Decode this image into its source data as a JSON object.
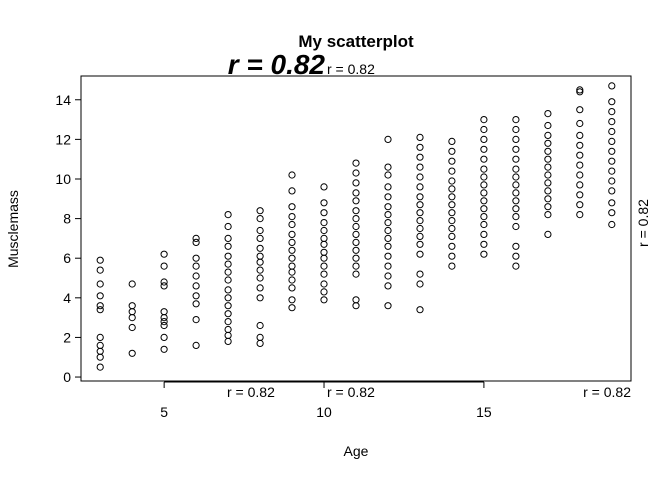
{
  "chart_data": {
    "type": "scatter",
    "title": "My scatterplot",
    "xlabel": "Age",
    "ylabel": "Musclemass",
    "xlim": [
      2.4,
      19.6
    ],
    "ylim": [
      -0.2,
      15.2
    ],
    "x_ticks": [
      5,
      10,
      15
    ],
    "y_ticks": [
      0,
      2,
      4,
      6,
      8,
      10,
      12,
      14
    ],
    "grid": false,
    "legend": "none",
    "marker": "open-circle",
    "point_color": "#000000",
    "annotations": [
      {
        "text": "r = 0.82",
        "style": "large-bold-italic",
        "color": "#ff0000",
        "placement": "top-margin"
      },
      {
        "text": "r = 0.82",
        "color": "#000000",
        "placement": "top-margin"
      },
      {
        "text": "r = 0.82",
        "color": "#000000",
        "placement": "right-margin"
      },
      {
        "text": "r = 0.82",
        "color": "#000000",
        "placement": "bottom-margin-left"
      },
      {
        "text": "r = 0.82",
        "color": "#000000",
        "placement": "bottom-margin-center"
      },
      {
        "text": "r = 0.82",
        "color": "#000000",
        "placement": "bottom-margin-right"
      }
    ],
    "series": [
      {
        "points": [
          [
            3,
            0.5
          ],
          [
            3,
            1.0
          ],
          [
            3,
            1.3
          ],
          [
            3,
            1.6
          ],
          [
            3,
            2.0
          ],
          [
            3,
            3.4
          ],
          [
            3,
            3.6
          ],
          [
            3,
            4.1
          ],
          [
            3,
            4.7
          ],
          [
            3,
            5.4
          ],
          [
            3,
            5.9
          ],
          [
            4,
            1.2
          ],
          [
            4,
            2.5
          ],
          [
            4,
            3.0
          ],
          [
            4,
            3.3
          ],
          [
            4,
            3.6
          ],
          [
            4,
            4.7
          ],
          [
            5,
            1.4
          ],
          [
            5,
            2.0
          ],
          [
            5,
            2.6
          ],
          [
            5,
            2.8
          ],
          [
            5,
            3.0
          ],
          [
            5,
            3.3
          ],
          [
            5,
            4.6
          ],
          [
            5,
            4.8
          ],
          [
            5,
            5.6
          ],
          [
            5,
            6.2
          ],
          [
            6,
            1.6
          ],
          [
            6,
            2.9
          ],
          [
            6,
            3.7
          ],
          [
            6,
            4.1
          ],
          [
            6,
            4.6
          ],
          [
            6,
            5.1
          ],
          [
            6,
            5.6
          ],
          [
            6,
            6.0
          ],
          [
            6,
            6.8
          ],
          [
            6,
            7.0
          ],
          [
            7,
            1.8
          ],
          [
            7,
            2.1
          ],
          [
            7,
            2.4
          ],
          [
            7,
            2.8
          ],
          [
            7,
            3.2
          ],
          [
            7,
            3.6
          ],
          [
            7,
            4.0
          ],
          [
            7,
            4.4
          ],
          [
            7,
            4.9
          ],
          [
            7,
            5.3
          ],
          [
            7,
            5.7
          ],
          [
            7,
            6.1
          ],
          [
            7,
            6.6
          ],
          [
            7,
            7.0
          ],
          [
            7,
            7.6
          ],
          [
            7,
            8.2
          ],
          [
            8,
            1.7
          ],
          [
            8,
            2.0
          ],
          [
            8,
            2.6
          ],
          [
            8,
            4.0
          ],
          [
            8,
            4.5
          ],
          [
            8,
            5.0
          ],
          [
            8,
            5.4
          ],
          [
            8,
            5.8
          ],
          [
            8,
            6.1
          ],
          [
            8,
            6.5
          ],
          [
            8,
            7.0
          ],
          [
            8,
            7.4
          ],
          [
            8,
            8.0
          ],
          [
            8,
            8.4
          ],
          [
            9,
            3.5
          ],
          [
            9,
            3.9
          ],
          [
            9,
            4.5
          ],
          [
            9,
            4.9
          ],
          [
            9,
            5.3
          ],
          [
            9,
            5.6
          ],
          [
            9,
            6.0
          ],
          [
            9,
            6.4
          ],
          [
            9,
            6.8
          ],
          [
            9,
            7.2
          ],
          [
            9,
            7.7
          ],
          [
            9,
            8.1
          ],
          [
            9,
            8.6
          ],
          [
            9,
            9.4
          ],
          [
            9,
            10.2
          ],
          [
            10,
            3.9
          ],
          [
            10,
            4.3
          ],
          [
            10,
            4.7
          ],
          [
            10,
            5.2
          ],
          [
            10,
            5.6
          ],
          [
            10,
            6.0
          ],
          [
            10,
            6.3
          ],
          [
            10,
            6.7
          ],
          [
            10,
            7.0
          ],
          [
            10,
            7.4
          ],
          [
            10,
            7.8
          ],
          [
            10,
            8.3
          ],
          [
            10,
            8.8
          ],
          [
            10,
            9.6
          ],
          [
            11,
            3.6
          ],
          [
            11,
            3.9
          ],
          [
            11,
            5.2
          ],
          [
            11,
            5.6
          ],
          [
            11,
            6.0
          ],
          [
            11,
            6.4
          ],
          [
            11,
            6.8
          ],
          [
            11,
            7.2
          ],
          [
            11,
            7.6
          ],
          [
            11,
            8.0
          ],
          [
            11,
            8.4
          ],
          [
            11,
            8.9
          ],
          [
            11,
            9.3
          ],
          [
            11,
            9.8
          ],
          [
            11,
            10.3
          ],
          [
            11,
            10.8
          ],
          [
            12,
            3.6
          ],
          [
            12,
            4.6
          ],
          [
            12,
            5.1
          ],
          [
            12,
            5.6
          ],
          [
            12,
            6.1
          ],
          [
            12,
            6.6
          ],
          [
            12,
            7.0
          ],
          [
            12,
            7.4
          ],
          [
            12,
            7.8
          ],
          [
            12,
            8.2
          ],
          [
            12,
            8.6
          ],
          [
            12,
            9.1
          ],
          [
            12,
            9.6
          ],
          [
            12,
            10.2
          ],
          [
            12,
            10.6
          ],
          [
            12,
            12.0
          ],
          [
            13,
            3.4
          ],
          [
            13,
            4.7
          ],
          [
            13,
            5.2
          ],
          [
            13,
            6.2
          ],
          [
            13,
            6.7
          ],
          [
            13,
            7.1
          ],
          [
            13,
            7.5
          ],
          [
            13,
            7.9
          ],
          [
            13,
            8.3
          ],
          [
            13,
            8.7
          ],
          [
            13,
            9.1
          ],
          [
            13,
            9.6
          ],
          [
            13,
            10.1
          ],
          [
            13,
            10.6
          ],
          [
            13,
            11.1
          ],
          [
            13,
            11.6
          ],
          [
            13,
            12.1
          ],
          [
            14,
            5.6
          ],
          [
            14,
            6.1
          ],
          [
            14,
            6.6
          ],
          [
            14,
            7.1
          ],
          [
            14,
            7.5
          ],
          [
            14,
            7.9
          ],
          [
            14,
            8.3
          ],
          [
            14,
            8.7
          ],
          [
            14,
            9.1
          ],
          [
            14,
            9.5
          ],
          [
            14,
            9.9
          ],
          [
            14,
            10.4
          ],
          [
            14,
            10.9
          ],
          [
            14,
            11.4
          ],
          [
            14,
            11.9
          ],
          [
            15,
            6.2
          ],
          [
            15,
            6.7
          ],
          [
            15,
            7.2
          ],
          [
            15,
            7.7
          ],
          [
            15,
            8.1
          ],
          [
            15,
            8.5
          ],
          [
            15,
            8.9
          ],
          [
            15,
            9.3
          ],
          [
            15,
            9.7
          ],
          [
            15,
            10.1
          ],
          [
            15,
            10.5
          ],
          [
            15,
            11.0
          ],
          [
            15,
            11.5
          ],
          [
            15,
            12.0
          ],
          [
            15,
            12.5
          ],
          [
            15,
            13.0
          ],
          [
            16,
            5.6
          ],
          [
            16,
            6.1
          ],
          [
            16,
            6.6
          ],
          [
            16,
            7.6
          ],
          [
            16,
            8.1
          ],
          [
            16,
            8.5
          ],
          [
            16,
            8.9
          ],
          [
            16,
            9.3
          ],
          [
            16,
            9.7
          ],
          [
            16,
            10.1
          ],
          [
            16,
            10.5
          ],
          [
            16,
            11.0
          ],
          [
            16,
            11.5
          ],
          [
            16,
            12.0
          ],
          [
            16,
            12.5
          ],
          [
            16,
            13.0
          ],
          [
            17,
            7.2
          ],
          [
            17,
            8.2
          ],
          [
            17,
            8.6
          ],
          [
            17,
            9.0
          ],
          [
            17,
            9.4
          ],
          [
            17,
            9.8
          ],
          [
            17,
            10.2
          ],
          [
            17,
            10.6
          ],
          [
            17,
            11.0
          ],
          [
            17,
            11.4
          ],
          [
            17,
            11.8
          ],
          [
            17,
            12.2
          ],
          [
            17,
            12.7
          ],
          [
            17,
            13.3
          ],
          [
            18,
            8.2
          ],
          [
            18,
            8.7
          ],
          [
            18,
            9.2
          ],
          [
            18,
            9.7
          ],
          [
            18,
            10.2
          ],
          [
            18,
            10.7
          ],
          [
            18,
            11.2
          ],
          [
            18,
            11.7
          ],
          [
            18,
            12.2
          ],
          [
            18,
            12.8
          ],
          [
            18,
            13.5
          ],
          [
            18,
            14.4
          ],
          [
            18,
            14.5
          ],
          [
            19,
            7.7
          ],
          [
            19,
            8.3
          ],
          [
            19,
            8.8
          ],
          [
            19,
            9.4
          ],
          [
            19,
            9.9
          ],
          [
            19,
            10.4
          ],
          [
            19,
            10.9
          ],
          [
            19,
            11.4
          ],
          [
            19,
            11.9
          ],
          [
            19,
            12.4
          ],
          [
            19,
            12.9
          ],
          [
            19,
            13.4
          ],
          [
            19,
            13.9
          ],
          [
            19,
            14.7
          ]
        ]
      }
    ]
  }
}
